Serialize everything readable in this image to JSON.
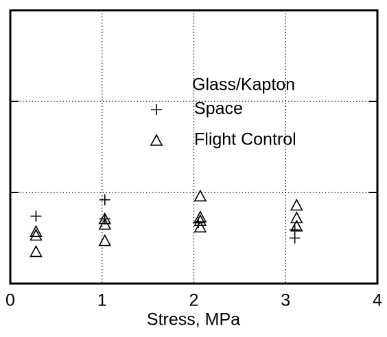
{
  "chart_data": {
    "type": "scatter",
    "x_label": "Stress, MPa",
    "legend_title": "Glass/Kapton",
    "legend": "upper right",
    "grid": true,
    "xlim": [
      0,
      4
    ],
    "xticks": [
      0,
      1,
      2,
      3,
      4
    ],
    "ylim": [
      0,
      3
    ],
    "yticks": [
      1,
      2
    ],
    "ytick_labels": false,
    "series": [
      {
        "name": "Space",
        "marker": "plus",
        "color": "#000000",
        "x": [
          0.28,
          1.03,
          1.03,
          2.05,
          3.1,
          3.1
        ],
        "values": [
          0.74,
          0.92,
          0.71,
          0.67,
          0.5,
          0.59
        ]
      },
      {
        "name": "Flight Control",
        "marker": "triangle",
        "color": "#000000",
        "x": [
          0.28,
          0.28,
          0.28,
          1.03,
          1.03,
          1.03,
          2.07,
          2.07,
          2.07,
          2.07,
          3.12,
          3.12,
          3.12
        ],
        "values": [
          0.57,
          0.53,
          0.35,
          0.71,
          0.65,
          0.47,
          0.96,
          0.73,
          0.69,
          0.62,
          0.86,
          0.72,
          0.63
        ]
      }
    ]
  }
}
